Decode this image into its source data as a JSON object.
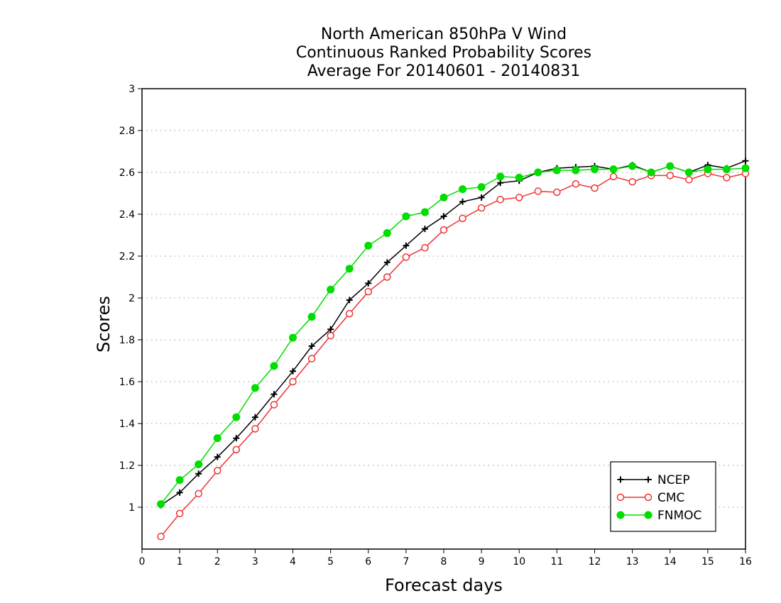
{
  "chart_data": {
    "type": "line",
    "title": [
      "North American 850hPa V Wind",
      "Continuous Ranked Probability Scores",
      "Average For 20140601 - 20140831"
    ],
    "xlabel": "Forecast days",
    "ylabel": "Scores",
    "xlim": [
      0,
      16
    ],
    "ylim": [
      0.8,
      3
    ],
    "x_ticks": [
      0,
      1,
      2,
      3,
      4,
      5,
      6,
      7,
      8,
      9,
      10,
      11,
      12,
      13,
      14,
      15,
      16
    ],
    "y_ticks": [
      1,
      1.2,
      1.4,
      1.6,
      1.8,
      2,
      2.2,
      2.4,
      2.6,
      2.8,
      3
    ],
    "grid": "horizontal dotted",
    "legend_position": "bottom-right",
    "x": [
      0.5,
      1,
      1.5,
      2,
      2.5,
      3,
      3.5,
      4,
      4.5,
      5,
      5.5,
      6,
      6.5,
      7,
      7.5,
      8,
      8.5,
      9,
      9.5,
      10,
      10.5,
      11,
      11.5,
      12,
      12.5,
      13,
      13.5,
      14,
      14.5,
      15,
      15.5,
      16
    ],
    "series": [
      {
        "name": "NCEP",
        "color": "#000000",
        "marker": "plus",
        "values": [
          1.01,
          1.07,
          1.16,
          1.24,
          1.33,
          1.43,
          1.54,
          1.65,
          1.77,
          1.85,
          1.99,
          2.07,
          2.17,
          2.25,
          2.33,
          2.39,
          2.46,
          2.48,
          2.55,
          2.56,
          2.6,
          2.62,
          2.625,
          2.63,
          2.615,
          2.635,
          2.6,
          2.63,
          2.6,
          2.635,
          2.62,
          2.655
        ]
      },
      {
        "name": "CMC",
        "color": "#ee3333",
        "marker": "open-circle",
        "values": [
          0.86,
          0.97,
          1.065,
          1.175,
          1.275,
          1.375,
          1.49,
          1.6,
          1.71,
          1.82,
          1.925,
          2.03,
          2.1,
          2.195,
          2.24,
          2.325,
          2.38,
          2.43,
          2.47,
          2.48,
          2.51,
          2.505,
          2.545,
          2.525,
          2.58,
          2.555,
          2.585,
          2.585,
          2.565,
          2.595,
          2.575,
          2.595
        ]
      },
      {
        "name": "FNMOC",
        "color": "#00dd00",
        "marker": "filled-circle",
        "values": [
          1.015,
          1.13,
          1.205,
          1.33,
          1.43,
          1.57,
          1.675,
          1.81,
          1.91,
          2.04,
          2.14,
          2.25,
          2.31,
          2.39,
          2.41,
          2.48,
          2.52,
          2.53,
          2.58,
          2.575,
          2.6,
          2.61,
          2.61,
          2.615,
          2.615,
          2.63,
          2.6,
          2.63,
          2.6,
          2.615,
          2.615,
          2.62
        ]
      }
    ]
  }
}
